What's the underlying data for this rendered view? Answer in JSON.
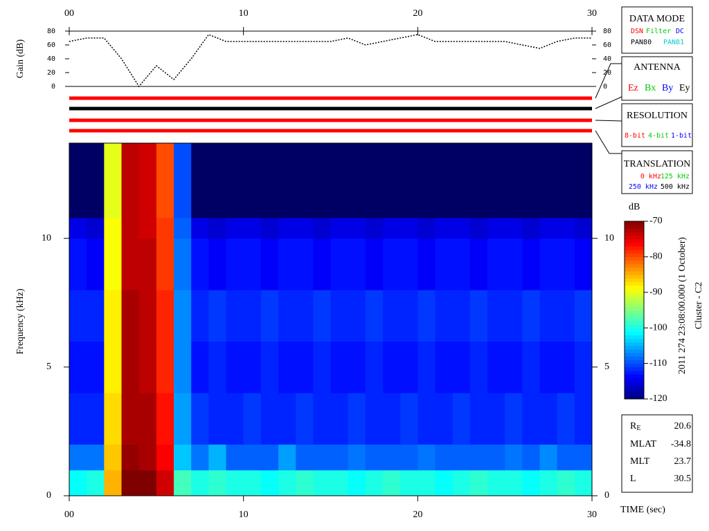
{
  "chart_data": [
    {
      "type": "line",
      "ylabel": "Gain (dB)",
      "color": "#000000",
      "xlim": [
        0,
        30
      ],
      "xticks": [
        {
          "value": 0,
          "label": "00"
        },
        10,
        20,
        30
      ],
      "ylim": [
        0,
        80
      ],
      "yticks": [
        0,
        20,
        40,
        60,
        80
      ],
      "x": [
        0,
        1,
        2,
        3,
        4,
        5,
        6,
        7,
        8,
        9,
        10,
        11,
        12,
        13,
        14,
        15,
        16,
        17,
        18,
        19,
        20,
        21,
        22,
        23,
        24,
        25,
        26,
        27,
        28,
        29,
        30
      ],
      "values": [
        65,
        70,
        70,
        40,
        0,
        30,
        10,
        40,
        75,
        65,
        65,
        65,
        65,
        65,
        65,
        65,
        70,
        60,
        65,
        70,
        75,
        65,
        65,
        65,
        65,
        65,
        60,
        55,
        65,
        70,
        70
      ]
    },
    {
      "type": "heatmap",
      "ylabel": "Frequency (kHz)",
      "xlabel": "TIME (sec)",
      "xlim": [
        0,
        30
      ],
      "xticks": [
        {
          "value": 0,
          "label": "00"
        },
        10,
        20,
        30
      ],
      "ylim": [
        0,
        13.7
      ],
      "yticks": [
        0,
        5,
        10
      ],
      "x_bins": [
        0,
        1,
        2,
        3,
        4,
        5,
        6,
        7,
        8,
        9,
        10,
        11,
        12,
        13,
        14,
        15,
        16,
        17,
        18,
        19,
        20,
        21,
        22,
        23,
        24,
        25,
        26,
        27,
        28,
        29,
        30
      ],
      "y_bins": [
        0,
        1,
        2,
        4,
        6,
        8,
        10,
        10.8,
        13.7
      ],
      "z": [
        [
          -101,
          -100,
          -85,
          -70,
          -70,
          -74,
          -98,
          -100,
          -99,
          -100,
          -100,
          -101,
          -100,
          -99,
          -100,
          -100,
          -101,
          -100,
          -99,
          -100,
          -100,
          -101,
          -100,
          -99,
          -100,
          -100,
          -101,
          -100,
          -99,
          -100
        ],
        [
          -108,
          -108,
          -86,
          -71,
          -72,
          -76,
          -104,
          -108,
          -105,
          -109,
          -109,
          -109,
          -106,
          -109,
          -109,
          -109,
          -108,
          -109,
          -109,
          -109,
          -108,
          -109,
          -109,
          -109,
          -109,
          -108,
          -109,
          -107,
          -109,
          -109
        ],
        [
          -112,
          -112,
          -87,
          -72,
          -72,
          -77,
          -106,
          -111,
          -112,
          -112,
          -111,
          -112,
          -112,
          -111,
          -112,
          -112,
          -111,
          -112,
          -112,
          -111,
          -112,
          -112,
          -111,
          -112,
          -112,
          -111,
          -112,
          -112,
          -111,
          -112
        ],
        [
          -113,
          -113,
          -88,
          -72,
          -73,
          -78,
          -107,
          -113,
          -112,
          -113,
          -113,
          -112,
          -113,
          -113,
          -112,
          -113,
          -113,
          -112,
          -113,
          -113,
          -112,
          -113,
          -113,
          -112,
          -113,
          -113,
          -112,
          -113,
          -113,
          -112
        ],
        [
          -112,
          -112,
          -88,
          -72,
          -73,
          -78,
          -107,
          -112,
          -111,
          -112,
          -112,
          -111,
          -112,
          -112,
          -111,
          -112,
          -112,
          -111,
          -112,
          -112,
          -111,
          -112,
          -112,
          -111,
          -112,
          -112,
          -111,
          -112,
          -112,
          -111
        ],
        [
          -113,
          -114,
          -89,
          -73,
          -73,
          -79,
          -108,
          -113,
          -114,
          -113,
          -113,
          -114,
          -113,
          -113,
          -114,
          -113,
          -113,
          -114,
          -113,
          -113,
          -114,
          -113,
          -113,
          -114,
          -113,
          -113,
          -114,
          -113,
          -113,
          -114
        ],
        [
          -115,
          -116,
          -89,
          -73,
          -74,
          -79,
          -109,
          -115,
          -116,
          -115,
          -115,
          -116,
          -115,
          -115,
          -116,
          -115,
          -115,
          -116,
          -115,
          -115,
          -116,
          -115,
          -115,
          -116,
          -115,
          -115,
          -116,
          -115,
          -115,
          -116
        ],
        [
          -130,
          -130,
          -90,
          -73,
          -74,
          -80,
          -110,
          -130,
          -130,
          -130,
          -130,
          -130,
          -130,
          -130,
          -130,
          -130,
          -130,
          -130,
          -130,
          -130,
          -130,
          -130,
          -130,
          -130,
          -130,
          -130,
          -130,
          -130,
          -130,
          -130
        ]
      ],
      "colorbar": {
        "title": "dB",
        "lim": [
          -120,
          -70
        ],
        "ticks": [
          -70,
          -80,
          -90,
          -100,
          -110,
          -120
        ]
      }
    }
  ],
  "panels": {
    "data_mode": {
      "title": "DATA MODE",
      "row1": [
        {
          "text": "DSN",
          "color": "#ff0000"
        },
        {
          "text": "Filter",
          "color": "#00cc00"
        },
        {
          "text": "DC",
          "color": "#0000ff"
        }
      ],
      "row2": [
        {
          "text": "PAN80",
          "color": "#000000"
        },
        {
          "text": "PAN81",
          "color": "#00cccc"
        }
      ]
    },
    "antenna": {
      "title": "ANTENNA",
      "items": [
        {
          "text": "Ez",
          "color": "#ff0000"
        },
        {
          "text": "Bx",
          "color": "#00cc00"
        },
        {
          "text": "By",
          "color": "#0000ff"
        },
        {
          "text": "Ey",
          "color": "#000000"
        }
      ]
    },
    "resolution": {
      "title": "RESOLUTION",
      "items": [
        {
          "text": "8-bit",
          "color": "#ff0000"
        },
        {
          "text": "4-bit",
          "color": "#00cc00"
        },
        {
          "text": "1-bit",
          "color": "#0000ff"
        }
      ]
    },
    "translation": {
      "title": "TRANSLATION",
      "items": [
        {
          "text": "0 kHz",
          "color": "#ff0000"
        },
        {
          "text": "125 kHz",
          "color": "#00cc00"
        },
        {
          "text": "250 kHz",
          "color": "#0000ff"
        },
        {
          "text": "500 kHz",
          "color": "#000000"
        }
      ]
    }
  },
  "side_label": {
    "date": "2011 274 23:08:00.000 (1 October)",
    "spacecraft": "Cluster - C2"
  },
  "ephemeris": [
    {
      "label": "R",
      "sub": "E",
      "value": 20.6
    },
    {
      "label": "MLAT",
      "value": -34.8
    },
    {
      "label": "MLT",
      "value": 23.7
    },
    {
      "label": "L",
      "value": 30.5
    }
  ]
}
